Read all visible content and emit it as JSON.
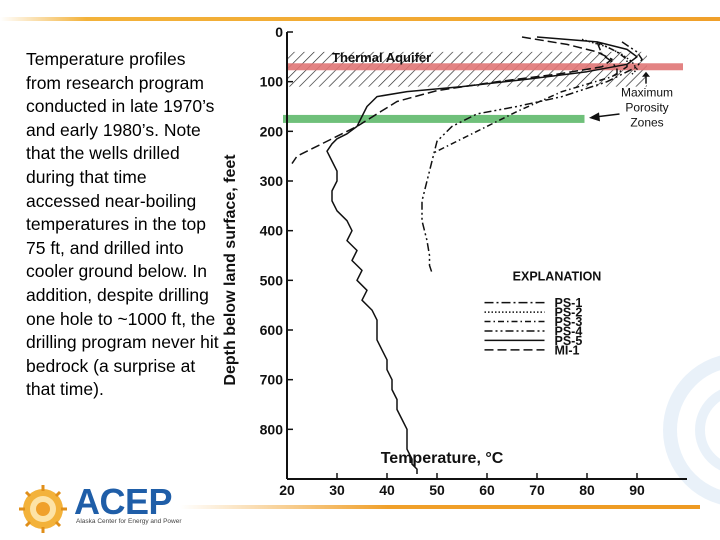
{
  "caption": "Temperature profiles from research program conducted in late 1970’s and early 1980’s. Note that the wells drilled during that time accessed near-boiling temperatures in the top 75 ft, and drilled into cooler ground below. In addition, despite drilling one hole to ~1000 ft, the drilling program never hit bedrock (a surprise at that time).",
  "logo": {
    "word": "ACEP",
    "subtitle": "Alaska Center for Energy and Power"
  },
  "colors": {
    "accent": "#f0a02a",
    "brand": "#1f5ea8",
    "aquifer_band": "#e07575",
    "porosity_band": "#6fc07a"
  },
  "chart_data": {
    "type": "line",
    "title": "",
    "xlabel": "Temperature, °C",
    "ylabel": "Depth below land surface, feet",
    "xlim": [
      20,
      100
    ],
    "ylim": [
      0,
      900
    ],
    "y_inverted": true,
    "x_ticks": [
      "20",
      "30",
      "40",
      "50",
      "60",
      "70",
      "80",
      "90"
    ],
    "y_ticks": [
      "0",
      "100",
      "200",
      "300",
      "400",
      "500",
      "600",
      "700",
      "800"
    ],
    "annotations": {
      "aquifer": "Thermal Aquifer",
      "porosity": "Maximum Porosity Zones"
    },
    "aquifer_depth": [
      40,
      110
    ],
    "aquifer_line_depth": 70,
    "porosity_depth": 175,
    "legend_title": "EXPLANATION",
    "series": [
      {
        "name": "PS-1",
        "dash": "9,3,2,3",
        "x": [
          82,
          83,
          85,
          86,
          86,
          85
        ],
        "y": [
          20,
          45,
          60,
          75,
          85,
          90
        ]
      },
      {
        "name": "PS-2",
        "dash": "1.5,2",
        "x": [
          79,
          84,
          87,
          89,
          90,
          89
        ],
        "y": [
          15,
          30,
          45,
          60,
          75,
          85
        ]
      },
      {
        "name": "PS-3",
        "dash": "6,3,1.5,3",
        "x": [
          82,
          86,
          88,
          88,
          85,
          75,
          66,
          58,
          52,
          49
        ],
        "y": [
          20,
          40,
          55,
          70,
          90,
          120,
          160,
          200,
          230,
          245
        ]
      },
      {
        "name": "PS-4",
        "dash": "8,3,2,3,2,3",
        "x": [
          87,
          90,
          91,
          90,
          84,
          75,
          66,
          58,
          53,
          50,
          49,
          48,
          47,
          47,
          48,
          48.5,
          48.5,
          49
        ],
        "y": [
          20,
          40,
          55,
          70,
          100,
          130,
          150,
          165,
          190,
          220,
          260,
          300,
          340,
          380,
          420,
          450,
          470,
          485
        ]
      },
      {
        "name": "PS-5",
        "dash": "",
        "x": [
          70,
          82,
          88,
          90,
          88,
          80,
          68,
          55,
          44,
          38,
          36,
          35,
          34,
          32,
          30,
          29,
          28,
          29,
          30,
          30,
          29,
          29,
          30,
          32,
          33,
          32,
          34,
          33,
          35,
          34,
          36,
          35,
          37,
          38,
          38,
          38,
          39,
          40,
          40,
          41,
          41,
          42,
          42,
          43,
          44,
          44,
          44,
          45,
          45,
          46,
          46
        ],
        "y": [
          10,
          20,
          35,
          50,
          65,
          80,
          95,
          110,
          120,
          130,
          150,
          170,
          190,
          205,
          215,
          225,
          240,
          260,
          280,
          300,
          320,
          340,
          360,
          380,
          400,
          420,
          440,
          460,
          480,
          500,
          520,
          540,
          560,
          580,
          600,
          620,
          640,
          660,
          680,
          700,
          720,
          740,
          760,
          780,
          800,
          820,
          840,
          860,
          870,
          880,
          890
        ]
      },
      {
        "name": "MI-1",
        "dash": "9,4",
        "x": [
          67,
          76,
          82,
          85,
          83,
          74,
          62,
          50,
          42,
          38,
          34,
          29,
          25,
          22,
          21
        ],
        "y": [
          10,
          25,
          40,
          55,
          70,
          85,
          100,
          118,
          140,
          165,
          190,
          215,
          235,
          250,
          265
        ]
      }
    ]
  }
}
